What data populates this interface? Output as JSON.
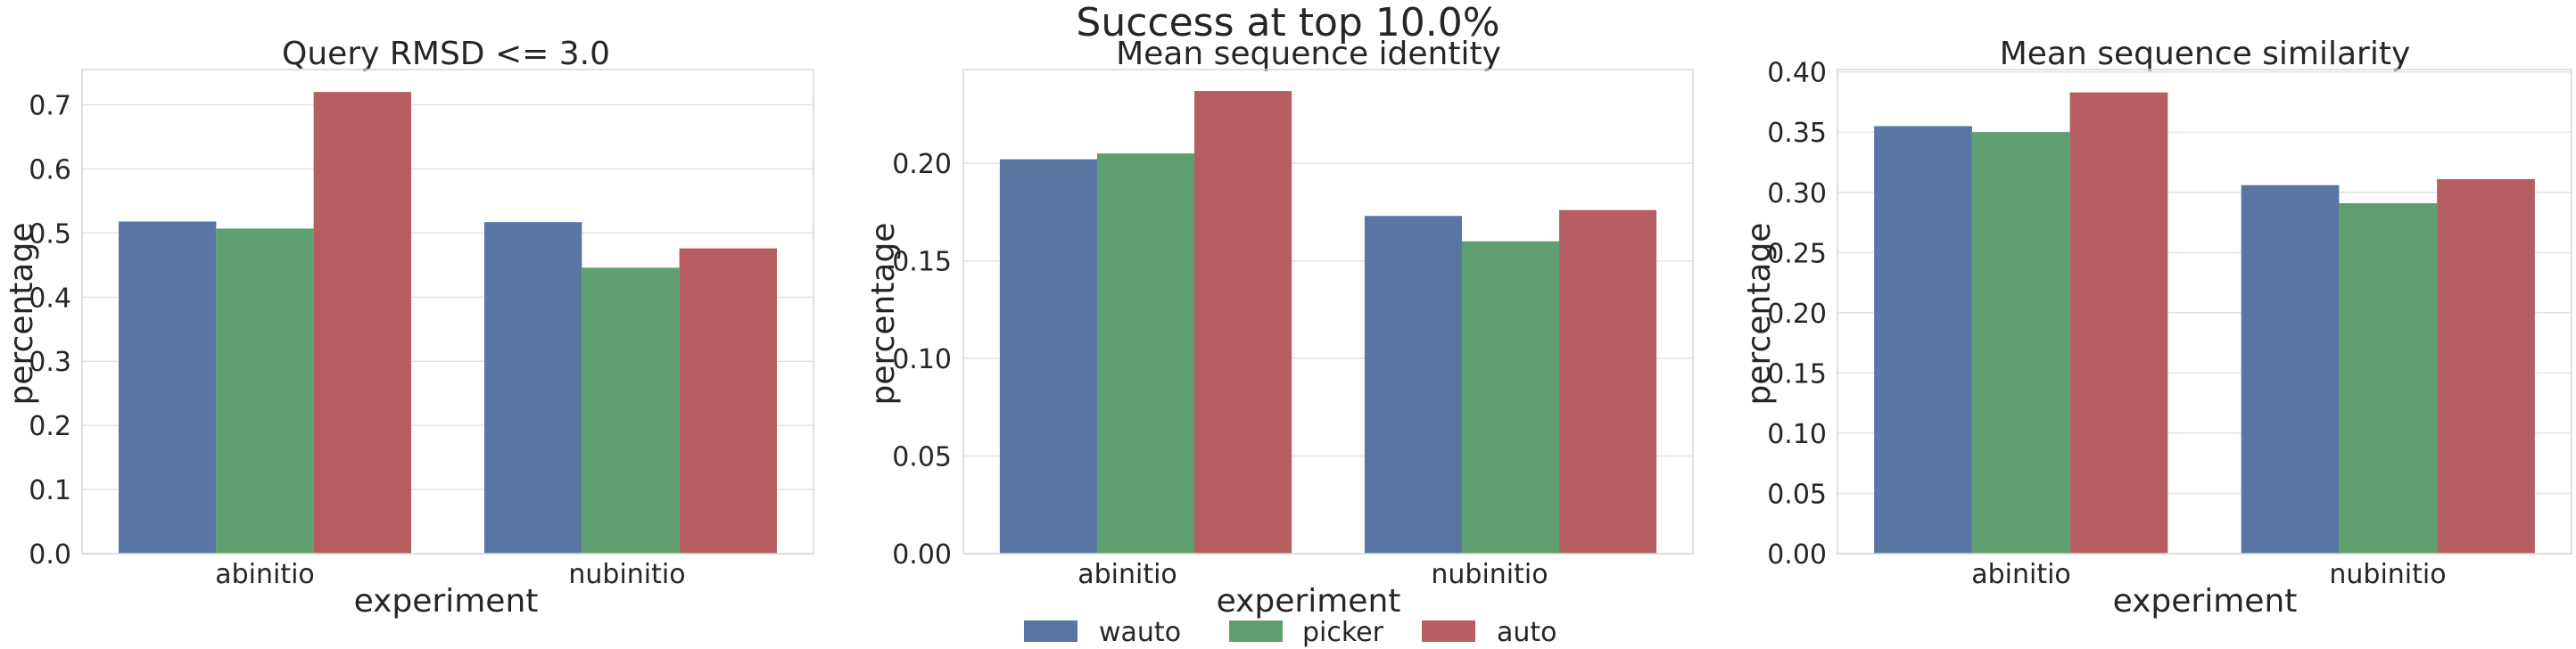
{
  "figure": {
    "suptitle": "Success at top 10.0%"
  },
  "legend": [
    {
      "label": "wauto",
      "color": "#5975a4"
    },
    {
      "label": "picker",
      "color": "#5f9e6e"
    },
    {
      "label": "auto",
      "color": "#b55d60"
    }
  ],
  "chart_data": [
    {
      "type": "bar",
      "title": "Query RMSD <= 3.0",
      "xlabel": "experiment",
      "ylabel": "percentage",
      "categories": [
        "abinitio",
        "nubinitio"
      ],
      "series": [
        {
          "name": "wauto",
          "values": [
            0.518,
            0.517
          ]
        },
        {
          "name": "picker",
          "values": [
            0.507,
            0.446
          ]
        },
        {
          "name": "auto",
          "values": [
            0.72,
            0.476
          ]
        }
      ],
      "ylim": [
        0,
        0.755
      ],
      "yticks": [
        "0.0",
        "0.1",
        "0.2",
        "0.3",
        "0.4",
        "0.5",
        "0.6",
        "0.7"
      ],
      "grid": true,
      "legend": "none"
    },
    {
      "type": "bar",
      "title": "Mean sequence identity",
      "xlabel": "experiment",
      "ylabel": "percentage",
      "categories": [
        "abinitio",
        "nubinitio"
      ],
      "series": [
        {
          "name": "wauto",
          "values": [
            0.202,
            0.173
          ]
        },
        {
          "name": "picker",
          "values": [
            0.205,
            0.16
          ]
        },
        {
          "name": "auto",
          "values": [
            0.237,
            0.176
          ]
        }
      ],
      "ylim": [
        0,
        0.248
      ],
      "yticks": [
        "0.00",
        "0.05",
        "0.10",
        "0.15",
        "0.20"
      ],
      "grid": true,
      "legend": "bottom"
    },
    {
      "type": "bar",
      "title": "Mean sequence similarity",
      "xlabel": "experiment",
      "ylabel": "percentage",
      "categories": [
        "abinitio",
        "nubinitio"
      ],
      "series": [
        {
          "name": "wauto",
          "values": [
            0.355,
            0.306
          ]
        },
        {
          "name": "picker",
          "values": [
            0.35,
            0.291
          ]
        },
        {
          "name": "auto",
          "values": [
            0.383,
            0.311
          ]
        }
      ],
      "ylim": [
        0,
        0.402
      ],
      "yticks": [
        "0.00",
        "0.05",
        "0.10",
        "0.15",
        "0.20",
        "0.25",
        "0.30",
        "0.35",
        "0.40"
      ],
      "grid": true,
      "legend": "none"
    }
  ]
}
